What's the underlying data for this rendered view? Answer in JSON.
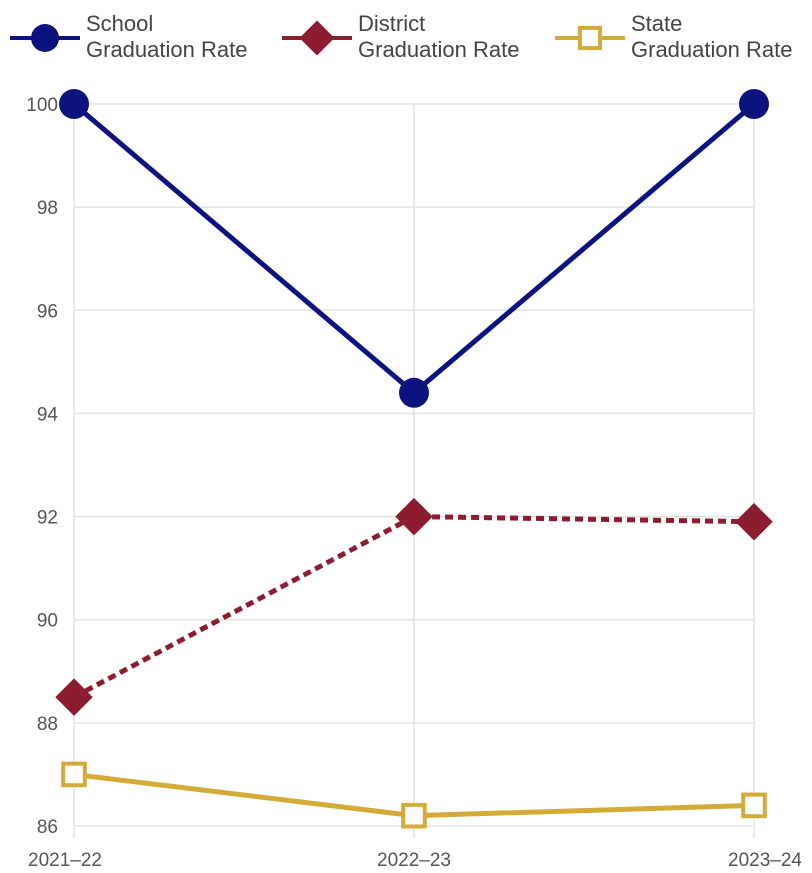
{
  "chart_data": {
    "type": "line",
    "categories": [
      "2021–22",
      "2022–23",
      "2023–24"
    ],
    "series": [
      {
        "name": "School\nGraduation Rate",
        "values": [
          100,
          94.4,
          100
        ],
        "color": "#0b137f",
        "marker": "circle",
        "line_style": "solid"
      },
      {
        "name": "District\nGraduation Rate",
        "values": [
          88.5,
          92.0,
          91.9
        ],
        "color": "#8c1d31",
        "marker": "diamond",
        "line_style": "dashed"
      },
      {
        "name": "State\nGraduation Rate",
        "values": [
          87.0,
          86.2,
          86.4
        ],
        "color": "#d4ab38",
        "marker": "open-square",
        "line_style": "solid"
      }
    ],
    "ylim": [
      86,
      100
    ],
    "yticks": [
      "86",
      "88",
      "90",
      "92",
      "94",
      "96",
      "98",
      "100"
    ],
    "grid": true,
    "legend_position": "top"
  }
}
